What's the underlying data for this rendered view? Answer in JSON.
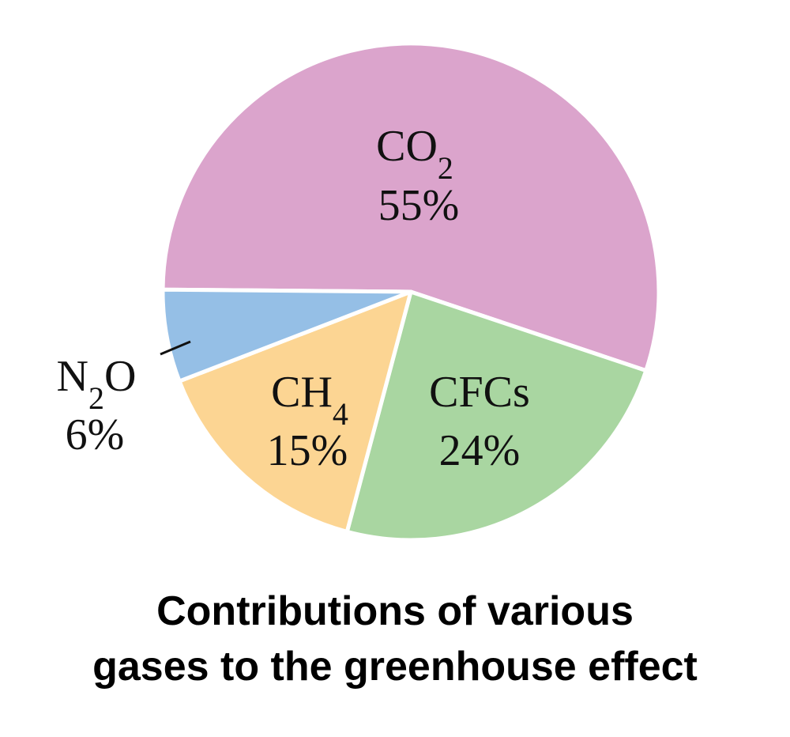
{
  "chart_data": {
    "type": "pie",
    "title_lines": [
      "Contributions of various",
      "gases to the greenhouse effect"
    ],
    "slices": [
      {
        "id": "co2",
        "label": "CO",
        "sub": "2",
        "value": 55,
        "pct_label": "55%",
        "color": "#dba4cc"
      },
      {
        "id": "cfcs",
        "label": "CFCs",
        "sub": "",
        "value": 24,
        "pct_label": "24%",
        "color": "#a9d6a1"
      },
      {
        "id": "ch4",
        "label": "CH",
        "sub": "4",
        "value": 15,
        "pct_label": "15%",
        "color": "#fcd593"
      },
      {
        "id": "n2o",
        "label": "N",
        "sub": "2",
        "suffix": "O",
        "value": 6,
        "pct_label": "6%",
        "color": "#95bfe6"
      }
    ],
    "separator_color": "#ffffff"
  }
}
